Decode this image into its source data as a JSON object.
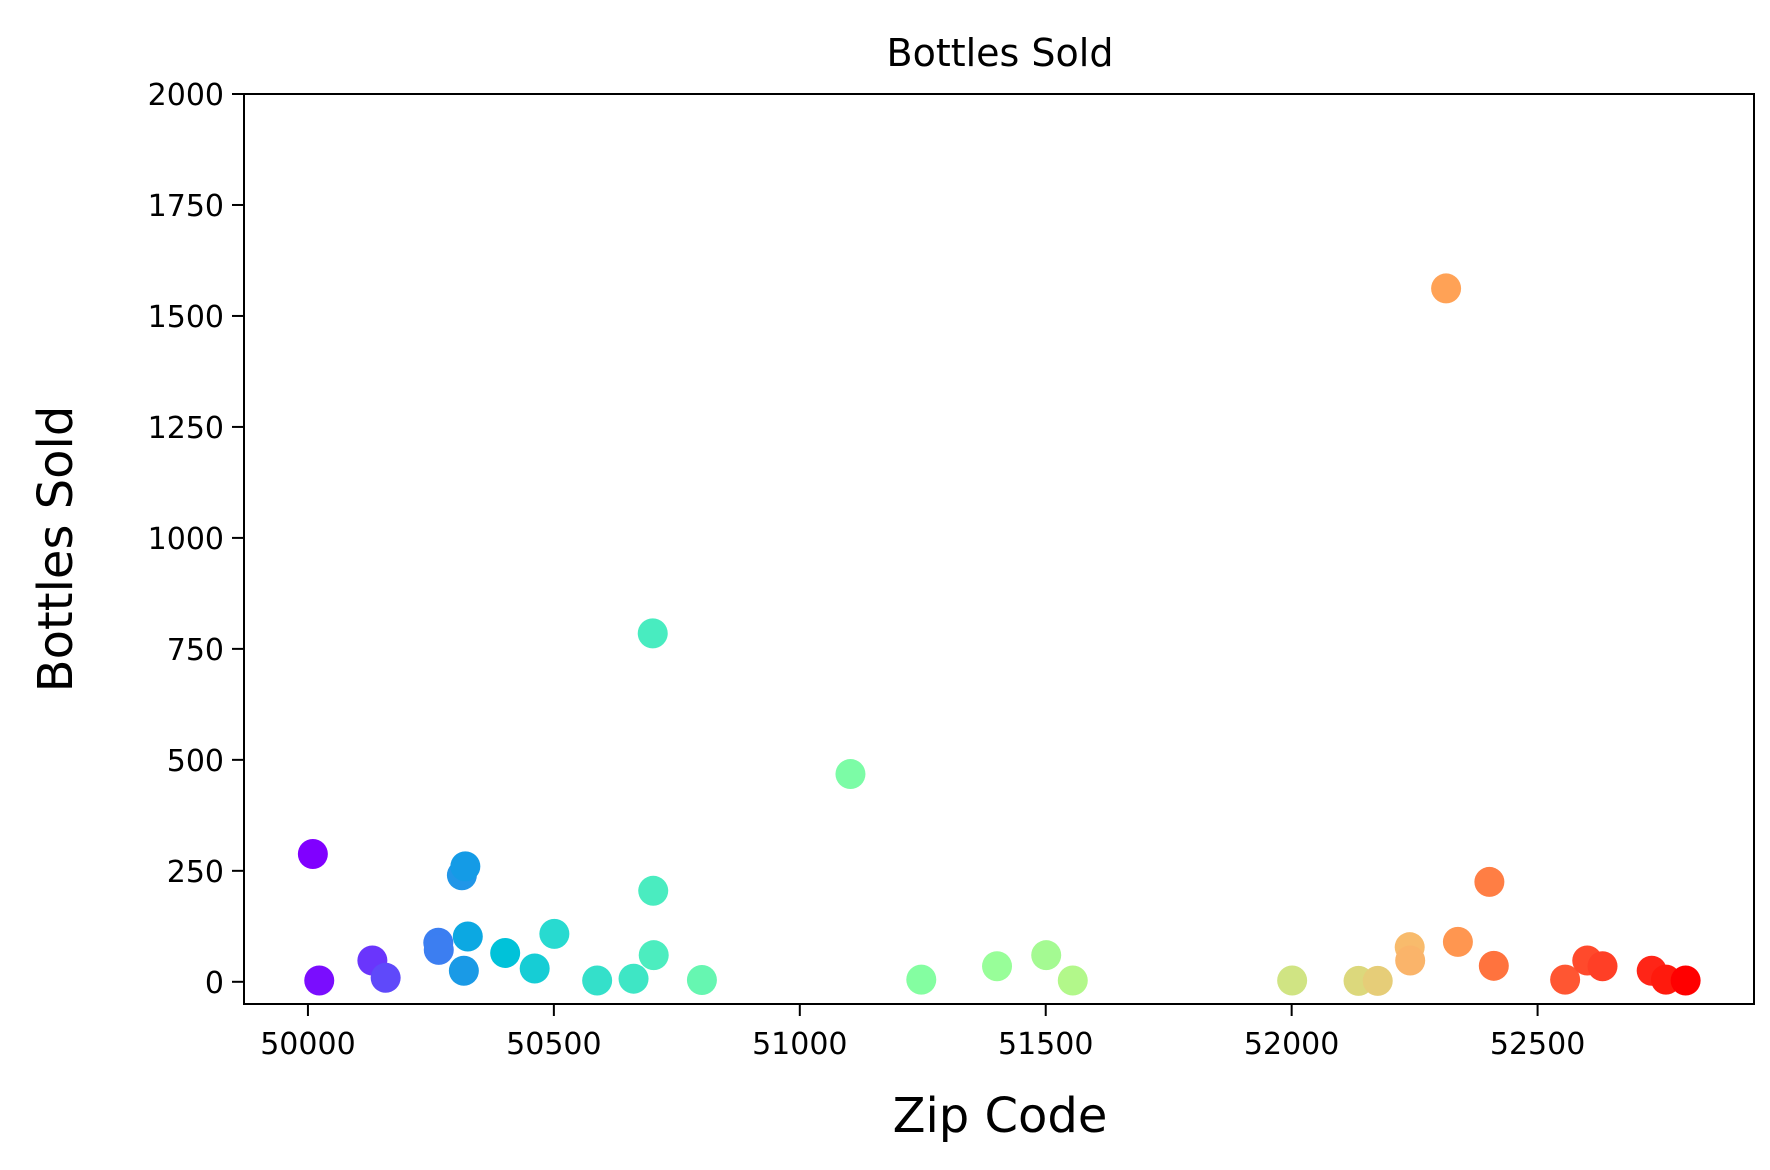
{
  "chart_data": {
    "type": "scatter",
    "title": "Bottles Sold",
    "xlabel": "Zip Code",
    "ylabel": "Bottles Sold",
    "xlim": [
      49870,
      52940
    ],
    "ylim": [
      -50,
      2000
    ],
    "xticks": [
      50000,
      50500,
      51000,
      51500,
      52000,
      52500
    ],
    "yticks": [
      0,
      250,
      500,
      750,
      1000,
      1250,
      1500,
      1750,
      2000
    ],
    "grid": false,
    "colormap": "rainbow",
    "points": [
      {
        "x": 50010,
        "y": 288,
        "color": "#8000ff"
      },
      {
        "x": 50023,
        "y": 3,
        "color": "#7a0dfe"
      },
      {
        "x": 50131,
        "y": 48,
        "color": "#6a35fc"
      },
      {
        "x": 50158,
        "y": 9,
        "color": "#5f49fa"
      },
      {
        "x": 50265,
        "y": 88,
        "color": "#3b7ef1"
      },
      {
        "x": 50266,
        "y": 72,
        "color": "#3c7ef1"
      },
      {
        "x": 50313,
        "y": 240,
        "color": "#2196e8"
      },
      {
        "x": 50317,
        "y": 25,
        "color": "#1a9ae6"
      },
      {
        "x": 50320,
        "y": 260,
        "color": "#149be6"
      },
      {
        "x": 50325,
        "y": 102,
        "color": "#0ca8e2"
      },
      {
        "x": 50401,
        "y": 65,
        "color": "#00c2d9"
      },
      {
        "x": 50461,
        "y": 30,
        "color": "#16cdd5"
      },
      {
        "x": 50501,
        "y": 108,
        "color": "#28dad0"
      },
      {
        "x": 50588,
        "y": 3,
        "color": "#34e0ca"
      },
      {
        "x": 50662,
        "y": 7,
        "color": "#3ee6c5"
      },
      {
        "x": 50701,
        "y": 785,
        "color": "#48ecc0"
      },
      {
        "x": 50702,
        "y": 205,
        "color": "#4aecc0"
      },
      {
        "x": 50703,
        "y": 60,
        "color": "#4cedbf"
      },
      {
        "x": 50801,
        "y": 4,
        "color": "#66f6b1"
      },
      {
        "x": 51103,
        "y": 468,
        "color": "#7cfca6"
      },
      {
        "x": 51247,
        "y": 5,
        "color": "#84fea1"
      },
      {
        "x": 51401,
        "y": 35,
        "color": "#98fe99"
      },
      {
        "x": 51501,
        "y": 60,
        "color": "#a4fa92"
      },
      {
        "x": 51555,
        "y": 3,
        "color": "#b2f88a"
      },
      {
        "x": 52001,
        "y": 3,
        "color": "#d0e483"
      },
      {
        "x": 52136,
        "y": 2,
        "color": "#dcd87c"
      },
      {
        "x": 52175,
        "y": 2,
        "color": "#e6cd78"
      },
      {
        "x": 52240,
        "y": 78,
        "color": "#f8bb6c"
      },
      {
        "x": 52241,
        "y": 48,
        "color": "#fab46a"
      },
      {
        "x": 52314,
        "y": 1562,
        "color": "#ffa256"
      },
      {
        "x": 52338,
        "y": 90,
        "color": "#ff9650"
      },
      {
        "x": 52402,
        "y": 225,
        "color": "#ff7e44"
      },
      {
        "x": 52411,
        "y": 36,
        "color": "#ff733e"
      },
      {
        "x": 52556,
        "y": 5,
        "color": "#ff5632"
      },
      {
        "x": 52601,
        "y": 48,
        "color": "#ff4a2c"
      },
      {
        "x": 52632,
        "y": 35,
        "color": "#ff3f26"
      },
      {
        "x": 52732,
        "y": 25,
        "color": "#ff2517"
      },
      {
        "x": 52761,
        "y": 5,
        "color": "#ff1a0d"
      },
      {
        "x": 52801,
        "y": 3,
        "color": "#ff0000"
      }
    ]
  }
}
